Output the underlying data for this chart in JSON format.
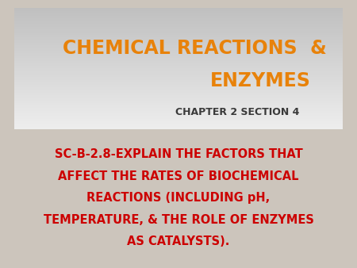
{
  "title_line1": "CHEMICAL REACTIONS  &",
  "title_line2": "ENZYMES",
  "subtitle": "CHAPTER 2 SECTION 4",
  "body_line1": "SC-B-2.8-EXPLAIN THE FACTORS THAT",
  "body_line2": "AFFECT THE RATES OF BIOCHEMICAL",
  "body_line3": "REACTIONS (INCLUDING pH,",
  "body_line4": "TEMPERATURE, & THE ROLE OF ENZYMES",
  "body_line5": "AS CATALYSTS).",
  "title_color": "#E8820A",
  "subtitle_color": "#3a3a3a",
  "body_color": "#cc0000",
  "background_outer": "#ccc5bc",
  "background_slide": "#ffffff",
  "title_fontsize": 17,
  "subtitle_fontsize": 9,
  "body_fontsize": 10.5
}
